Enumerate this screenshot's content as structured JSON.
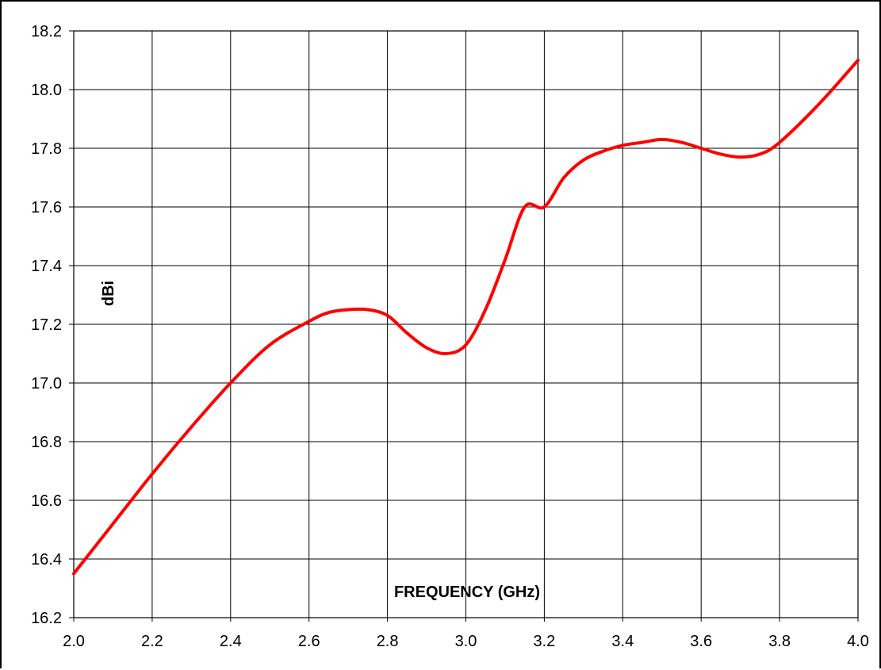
{
  "chart_data": {
    "type": "line",
    "xlabel": "FREQUENCY (GHz)",
    "ylabel": "dBi",
    "xlim": [
      2.0,
      4.0
    ],
    "ylim": [
      16.2,
      18.2
    ],
    "x_ticks": [
      "2.0",
      "2.2",
      "2.4",
      "2.6",
      "2.8",
      "3.0",
      "3.2",
      "3.4",
      "3.6",
      "3.8",
      "4.0"
    ],
    "y_ticks": [
      "16.2",
      "16.4",
      "16.6",
      "16.8",
      "17.0",
      "17.2",
      "17.4",
      "17.6",
      "17.8",
      "18.0",
      "18.2"
    ],
    "grid": true,
    "series": [
      {
        "color": "#ff0000",
        "x": [
          2.0,
          2.1,
          2.2,
          2.3,
          2.4,
          2.5,
          2.6,
          2.65,
          2.7,
          2.75,
          2.8,
          2.85,
          2.9,
          2.95,
          3.0,
          3.05,
          3.1,
          3.15,
          3.2,
          3.25,
          3.3,
          3.35,
          3.4,
          3.45,
          3.5,
          3.55,
          3.6,
          3.65,
          3.7,
          3.75,
          3.8,
          3.9,
          4.0
        ],
        "y": [
          16.35,
          16.52,
          16.69,
          16.85,
          17.0,
          17.13,
          17.21,
          17.24,
          17.25,
          17.25,
          17.23,
          17.17,
          17.12,
          17.1,
          17.13,
          17.25,
          17.42,
          17.6,
          17.6,
          17.7,
          17.76,
          17.79,
          17.81,
          17.82,
          17.83,
          17.82,
          17.8,
          17.78,
          17.77,
          17.78,
          17.82,
          17.95,
          18.1
        ]
      }
    ]
  }
}
